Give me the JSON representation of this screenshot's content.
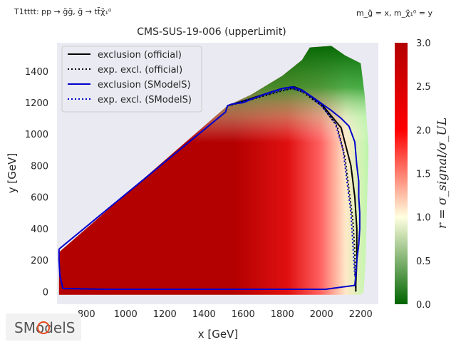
{
  "chart_data": {
    "type": "heatmap",
    "title": "CMS-SUS-19-006 (upperLimit)",
    "top_left_note": "T1tttt: pp → g̃g̃, g̃ → tt̄χ̃₁⁰",
    "top_right_note": "m_g̃ = x, m_χ̃₁⁰ = y",
    "xlabel": "x [GeV]",
    "ylabel": "y [GeV]",
    "xlim": [
      650,
      2290
    ],
    "ylim": [
      -80,
      1580
    ],
    "x_ticks": [
      800,
      1000,
      1200,
      1400,
      1600,
      1800,
      2000,
      2200
    ],
    "y_ticks": [
      0,
      200,
      400,
      600,
      800,
      1000,
      1200,
      1400
    ],
    "colorbar": {
      "label": "r = σ_signal/σ_UL",
      "range": [
        0.0,
        3.0
      ],
      "ticks": [
        0.0,
        0.5,
        1.0,
        1.5,
        2.0,
        2.5,
        3.0
      ],
      "colors": [
        "#006400",
        "#ffffe0",
        "#ff0000",
        "#b30000"
      ]
    },
    "grid": false,
    "background_color": "#eaeaf2",
    "legend_position": "top-left",
    "legend": [
      {
        "label": "exclusion (official)",
        "color": "#000000",
        "style": "solid"
      },
      {
        "label": "exp. excl. (official)",
        "color": "#000000",
        "style": "dotted"
      },
      {
        "label": "exclusion (SModelS)",
        "color": "#0000cc",
        "style": "solid"
      },
      {
        "label": "exp. excl. (SModelS)",
        "color": "#0000cc",
        "style": "dotted"
      }
    ],
    "coverage_region": [
      [
        660,
        250
      ],
      [
        1520,
        1180
      ],
      [
        1640,
        1250
      ],
      [
        1800,
        1370
      ],
      [
        1900,
        1470
      ],
      [
        1940,
        1550
      ],
      [
        2050,
        1560
      ],
      [
        2120,
        1500
      ],
      [
        2200,
        1450
      ],
      [
        2220,
        1250
      ],
      [
        2230,
        1100
      ],
      [
        2240,
        900
      ],
      [
        2235,
        700
      ],
      [
        2230,
        450
      ],
      [
        2225,
        200
      ],
      [
        2215,
        0
      ],
      [
        2200,
        -20
      ],
      [
        660,
        -20
      ]
    ],
    "series": [
      {
        "name": "exclusion (official)",
        "x": [
          1520,
          1600,
          1700,
          1800,
          1860,
          1900,
          2000,
          2100,
          2150,
          2170,
          2180,
          2180,
          2175,
          2175
        ],
        "y": [
          1180,
          1210,
          1250,
          1290,
          1300,
          1280,
          1190,
          1040,
          800,
          600,
          400,
          200,
          50,
          0
        ]
      },
      {
        "name": "exp. excl. (official)",
        "x": [
          1540,
          1600,
          1700,
          1800,
          1850,
          1900,
          2000,
          2080,
          2120,
          2140,
          2160,
          2170,
          2172,
          2175
        ],
        "y": [
          1185,
          1205,
          1240,
          1275,
          1290,
          1270,
          1180,
          1050,
          850,
          650,
          450,
          250,
          100,
          -10
        ]
      },
      {
        "name": "exclusion (SModelS)",
        "x": [
          660,
          660,
          665,
          680,
          900,
          1200,
          1500,
          1800,
          2020,
          2170,
          2175,
          2180,
          2190,
          2195,
          2195,
          2190,
          2190,
          2180,
          2170,
          2140,
          2100,
          2050,
          1960,
          1900,
          1850,
          1800,
          1700,
          1600,
          1540,
          1520,
          1510,
          660
        ],
        "y": [
          270,
          200,
          100,
          20,
          15,
          15,
          15,
          15,
          15,
          40,
          100,
          200,
          300,
          400,
          500,
          600,
          700,
          800,
          950,
          1050,
          1100,
          1150,
          1230,
          1280,
          1300,
          1290,
          1250,
          1200,
          1190,
          1180,
          1140,
          270
        ]
      },
      {
        "name": "exp. excl. (SModelS)",
        "x": [
          1530,
          1600,
          1700,
          1800,
          1850,
          1920,
          2000,
          2070,
          2110,
          2130,
          2150,
          2160,
          2170
        ],
        "y": [
          1185,
          1210,
          1245,
          1280,
          1290,
          1260,
          1180,
          1070,
          900,
          700,
          500,
          300,
          100
        ]
      }
    ]
  },
  "logo": {
    "text": "SModelS",
    "colors": {
      "text": "#555555",
      "accent": "#e34a1f"
    }
  }
}
